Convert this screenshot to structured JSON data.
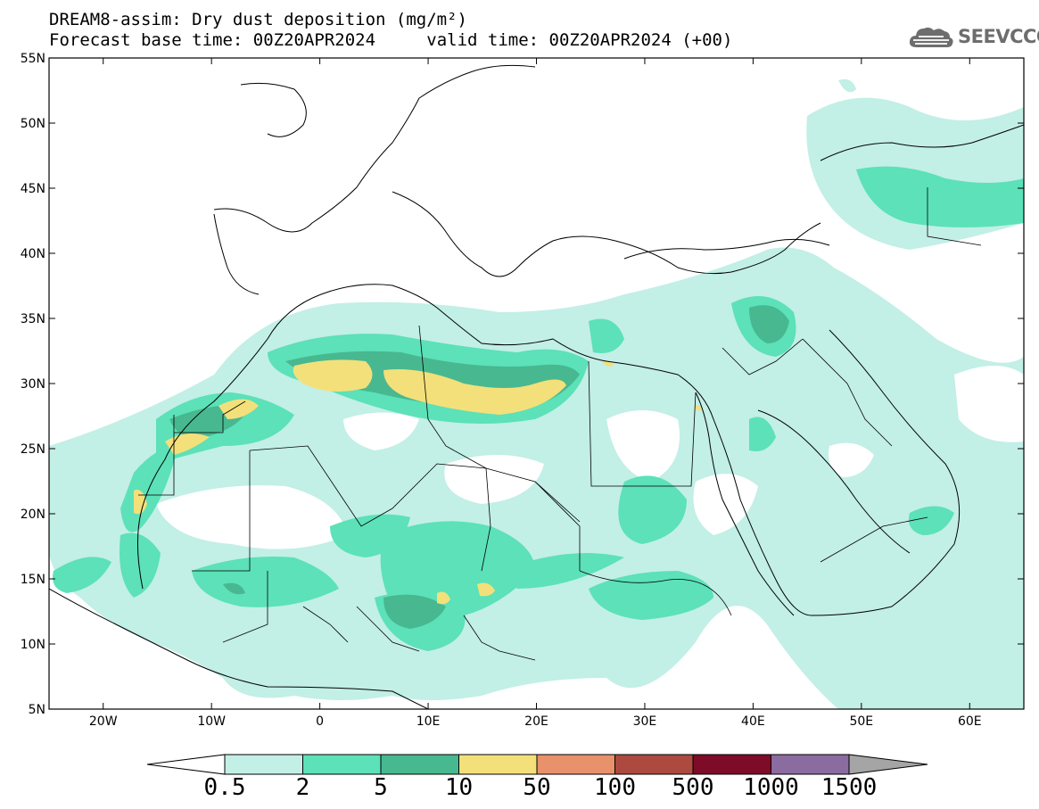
{
  "title": {
    "line1": "DREAM8-assim: Dry dust deposition (mg/m²)",
    "line2_left": "Forecast base time: 00Z20APR2024",
    "line2_right": "valid time: 00Z20APR2024 (+00)"
  },
  "logo": {
    "icon": "cloud-logo-icon",
    "text": "SEEVCCC"
  },
  "map": {
    "lon_range": [
      -25,
      65
    ],
    "lat_range": [
      5,
      55
    ],
    "lat_ticks": [
      {
        "value": 55,
        "label": "55N"
      },
      {
        "value": 50,
        "label": "50N"
      },
      {
        "value": 45,
        "label": "45N"
      },
      {
        "value": 40,
        "label": "40N"
      },
      {
        "value": 35,
        "label": "35N"
      },
      {
        "value": 30,
        "label": "30N"
      },
      {
        "value": 25,
        "label": "25N"
      },
      {
        "value": 20,
        "label": "20N"
      },
      {
        "value": 15,
        "label": "15N"
      },
      {
        "value": 10,
        "label": "10N"
      },
      {
        "value": 5,
        "label": "5N"
      }
    ],
    "lon_ticks": [
      {
        "value": -20,
        "label": "20W"
      },
      {
        "value": -10,
        "label": "10W"
      },
      {
        "value": 0,
        "label": "0"
      },
      {
        "value": 10,
        "label": "10E"
      },
      {
        "value": 20,
        "label": "20E"
      },
      {
        "value": 30,
        "label": "30E"
      },
      {
        "value": 40,
        "label": "40E"
      },
      {
        "value": 50,
        "label": "50E"
      },
      {
        "value": 60,
        "label": "60E"
      }
    ]
  },
  "legend": {
    "bins": [
      {
        "label": "0.5",
        "color": "#c2efe6"
      },
      {
        "label": "2",
        "color": "#5ce1b8"
      },
      {
        "label": "5",
        "color": "#48b890"
      },
      {
        "label": "10",
        "color": "#f3e07a"
      },
      {
        "label": "50",
        "color": "#e8916a"
      },
      {
        "label": "100",
        "color": "#ad4a40"
      },
      {
        "label": "500",
        "color": "#7e0b27"
      },
      {
        "label": "1000",
        "color": "#8b6ca0"
      },
      {
        "label": "1500",
        "color": "#a5a5a5"
      }
    ]
  }
}
